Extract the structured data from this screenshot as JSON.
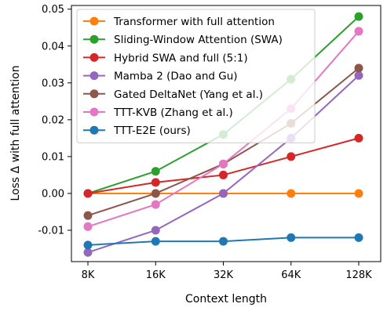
{
  "chart_data": {
    "type": "line",
    "title": "",
    "xlabel": "Context length",
    "ylabel": "Loss Δ with full attention",
    "categories": [
      "8K",
      "16K",
      "32K",
      "64K",
      "128K"
    ],
    "ylim": [
      -0.0185,
      0.051
    ],
    "yticks": [
      -0.01,
      0.0,
      0.01,
      0.02,
      0.03,
      0.04,
      0.05
    ],
    "ytick_labels": [
      "-0.01",
      "0.00",
      "0.01",
      "0.02",
      "0.03",
      "0.04",
      "0.05"
    ],
    "grid": false,
    "legend_position": "top-left",
    "series": [
      {
        "name": "Transformer with full attention",
        "color": "#ff7f0e",
        "values": [
          0.0,
          0.0,
          0.0,
          0.0,
          0.0
        ]
      },
      {
        "name": "Sliding-Window Attention (SWA)",
        "color": "#2ca02c",
        "values": [
          0.0,
          0.006,
          0.016,
          0.031,
          0.048
        ]
      },
      {
        "name": "Hybrid SWA and full (5:1)",
        "color": "#d62728",
        "values": [
          0.0,
          0.003,
          0.005,
          0.01,
          0.015
        ]
      },
      {
        "name": "Mamba 2 (Dao and Gu)",
        "color": "#9467bd",
        "values": [
          -0.016,
          -0.01,
          0.0,
          0.015,
          0.032
        ]
      },
      {
        "name": "Gated DeltaNet (Yang et al.)",
        "color": "#8c564b",
        "values": [
          -0.006,
          0.0,
          0.008,
          0.019,
          0.034
        ]
      },
      {
        "name": "TTT-KVB (Zhang et al.)",
        "color": "#e377c2",
        "values": [
          -0.009,
          -0.003,
          0.008,
          0.023,
          0.044
        ]
      },
      {
        "name": "TTT-E2E (ours)",
        "color": "#1f77b4",
        "values": [
          -0.014,
          -0.013,
          -0.013,
          -0.012,
          -0.012
        ]
      }
    ]
  }
}
